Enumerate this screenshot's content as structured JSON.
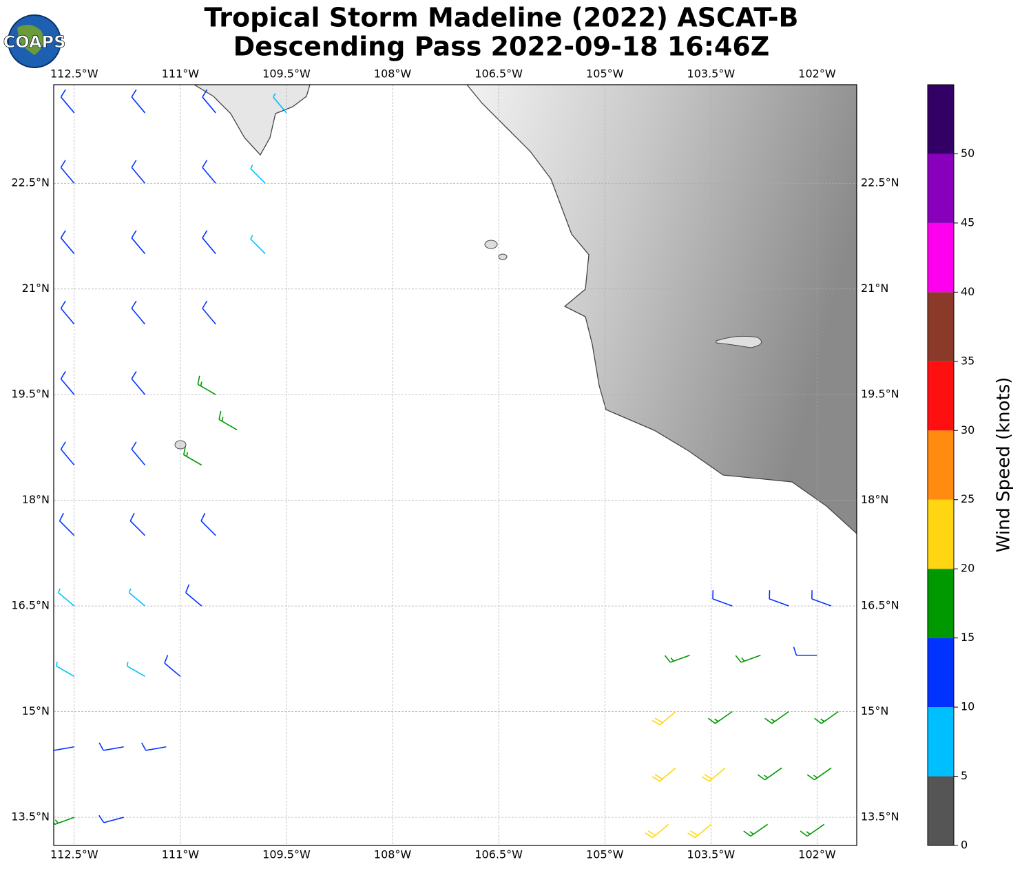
{
  "title": [
    "Tropical Storm Madeline (2022) ASCAT-B",
    "Descending Pass 2022-09-18 16:46Z"
  ],
  "logo": "COAPS",
  "map": {
    "lonlim": [
      -112.79,
      -101.44
    ],
    "latlim": [
      13.1,
      23.9
    ],
    "lonticks": [
      {
        "value": -112.5,
        "label": "112.5°W"
      },
      {
        "value": -111,
        "label": "111°W"
      },
      {
        "value": -109.5,
        "label": "109.5°W"
      },
      {
        "value": -108,
        "label": "108°W"
      },
      {
        "value": -106.5,
        "label": "106.5°W"
      },
      {
        "value": -105,
        "label": "105°W"
      },
      {
        "value": -103.5,
        "label": "103.5°W"
      },
      {
        "value": -102,
        "label": "102°W"
      }
    ],
    "latticks": [
      {
        "value": 13.5,
        "label": "13.5°N"
      },
      {
        "value": 15,
        "label": "15°N"
      },
      {
        "value": 16.5,
        "label": "16.5°N"
      },
      {
        "value": 18,
        "label": "18°N"
      },
      {
        "value": 19.5,
        "label": "19.5°N"
      },
      {
        "value": 21,
        "label": "21°N"
      },
      {
        "value": 22.5,
        "label": "22.5°N"
      }
    ],
    "grid": true
  },
  "barbs": [
    {
      "lon": -112.5,
      "lat": 23.5,
      "speed": 11,
      "direction": 320
    },
    {
      "lon": -111.5,
      "lat": 23.5,
      "speed": 12,
      "direction": 320
    },
    {
      "lon": -110.5,
      "lat": 23.5,
      "speed": 12,
      "direction": 320
    },
    {
      "lon": -109.5,
      "lat": 23.5,
      "speed": 8,
      "direction": 320
    },
    {
      "lon": -112.5,
      "lat": 22.5,
      "speed": 12,
      "direction": 320
    },
    {
      "lon": -111.5,
      "lat": 22.5,
      "speed": 12,
      "direction": 320
    },
    {
      "lon": -110.5,
      "lat": 22.5,
      "speed": 12,
      "direction": 320
    },
    {
      "lon": -109.8,
      "lat": 22.5,
      "speed": 8,
      "direction": 315
    },
    {
      "lon": -112.5,
      "lat": 21.5,
      "speed": 12,
      "direction": 320
    },
    {
      "lon": -111.5,
      "lat": 21.5,
      "speed": 13,
      "direction": 320
    },
    {
      "lon": -110.5,
      "lat": 21.5,
      "speed": 12,
      "direction": 320
    },
    {
      "lon": -109.8,
      "lat": 21.5,
      "speed": 9,
      "direction": 315
    },
    {
      "lon": -112.5,
      "lat": 20.5,
      "speed": 12,
      "direction": 320
    },
    {
      "lon": -111.5,
      "lat": 20.5,
      "speed": 12,
      "direction": 320
    },
    {
      "lon": -110.5,
      "lat": 20.5,
      "speed": 12,
      "direction": 320
    },
    {
      "lon": -112.5,
      "lat": 19.5,
      "speed": 12,
      "direction": 320
    },
    {
      "lon": -111.5,
      "lat": 19.5,
      "speed": 12,
      "direction": 320
    },
    {
      "lon": -110.5,
      "lat": 19.5,
      "speed": 17,
      "direction": 300
    },
    {
      "lon": -110.2,
      "lat": 19.0,
      "speed": 17,
      "direction": 300
    },
    {
      "lon": -112.5,
      "lat": 18.5,
      "speed": 12,
      "direction": 320
    },
    {
      "lon": -111.5,
      "lat": 18.5,
      "speed": 12,
      "direction": 320
    },
    {
      "lon": -110.7,
      "lat": 18.5,
      "speed": 17,
      "direction": 300
    },
    {
      "lon": -112.5,
      "lat": 17.5,
      "speed": 12,
      "direction": 315
    },
    {
      "lon": -111.5,
      "lat": 17.5,
      "speed": 12,
      "direction": 315
    },
    {
      "lon": -110.5,
      "lat": 17.5,
      "speed": 12,
      "direction": 315
    },
    {
      "lon": -112.5,
      "lat": 16.5,
      "speed": 9,
      "direction": 310
    },
    {
      "lon": -111.5,
      "lat": 16.5,
      "speed": 9,
      "direction": 310
    },
    {
      "lon": -110.7,
      "lat": 16.5,
      "speed": 12,
      "direction": 310
    },
    {
      "lon": -112.5,
      "lat": 15.5,
      "speed": 8,
      "direction": 300
    },
    {
      "lon": -111.5,
      "lat": 15.5,
      "speed": 9,
      "direction": 300
    },
    {
      "lon": -111.0,
      "lat": 15.5,
      "speed": 12,
      "direction": 310
    },
    {
      "lon": -112.5,
      "lat": 14.5,
      "speed": 12,
      "direction": 260
    },
    {
      "lon": -111.8,
      "lat": 14.5,
      "speed": 12,
      "direction": 260
    },
    {
      "lon": -111.2,
      "lat": 14.5,
      "speed": 12,
      "direction": 260
    },
    {
      "lon": -112.5,
      "lat": 13.5,
      "speed": 17,
      "direction": 250
    },
    {
      "lon": -111.8,
      "lat": 13.5,
      "speed": 14,
      "direction": 255
    },
    {
      "lon": -103.2,
      "lat": 16.5,
      "speed": 12,
      "direction": 290
    },
    {
      "lon": -102.4,
      "lat": 16.5,
      "speed": 12,
      "direction": 290
    },
    {
      "lon": -101.8,
      "lat": 16.5,
      "speed": 14,
      "direction": 290
    },
    {
      "lon": -103.8,
      "lat": 15.8,
      "speed": 17,
      "direction": 250
    },
    {
      "lon": -102.8,
      "lat": 15.8,
      "speed": 16,
      "direction": 250
    },
    {
      "lon": -102.0,
      "lat": 15.8,
      "speed": 12,
      "direction": 270
    },
    {
      "lon": -104.0,
      "lat": 15.0,
      "speed": 22,
      "direction": 230
    },
    {
      "lon": -103.2,
      "lat": 15.0,
      "speed": 18,
      "direction": 235
    },
    {
      "lon": -102.4,
      "lat": 15.0,
      "speed": 18,
      "direction": 235
    },
    {
      "lon": -101.7,
      "lat": 15.0,
      "speed": 17,
      "direction": 235
    },
    {
      "lon": -104.0,
      "lat": 14.2,
      "speed": 22,
      "direction": 230
    },
    {
      "lon": -103.3,
      "lat": 14.2,
      "speed": 21,
      "direction": 230
    },
    {
      "lon": -102.5,
      "lat": 14.2,
      "speed": 18,
      "direction": 235
    },
    {
      "lon": -101.8,
      "lat": 14.2,
      "speed": 18,
      "direction": 235
    },
    {
      "lon": -104.1,
      "lat": 13.4,
      "speed": 22,
      "direction": 230
    },
    {
      "lon": -103.5,
      "lat": 13.4,
      "speed": 22,
      "direction": 230
    },
    {
      "lon": -102.7,
      "lat": 13.4,
      "speed": 18,
      "direction": 235
    },
    {
      "lon": -101.9,
      "lat": 13.4,
      "speed": 18,
      "direction": 235
    }
  ],
  "colorbar": {
    "label": "Wind Speed (knots)",
    "clim": [
      0,
      55
    ],
    "ticks": [
      0,
      5,
      10,
      15,
      20,
      25,
      30,
      35,
      40,
      45,
      50
    ],
    "colors": [
      "#555555",
      "#00bfff",
      "#0033ff",
      "#009900",
      "#ffd611",
      "#ff8c10",
      "#ff1010",
      "#8b3a2a",
      "#ff00ee",
      "#8800bb",
      "#330066"
    ]
  }
}
